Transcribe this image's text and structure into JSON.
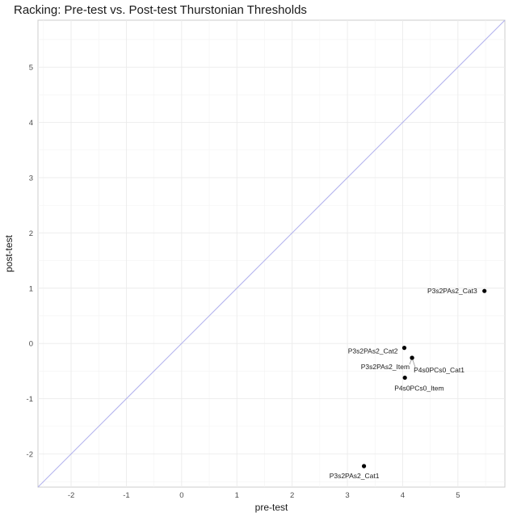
{
  "chart_data": {
    "type": "scatter",
    "title": "Racking: Pre-test vs. Post-test Thurstonian Thresholds",
    "xlabel": "pre-test",
    "ylabel": "post-test",
    "xlim": [
      -2.6,
      5.85
    ],
    "ylim": [
      -2.6,
      5.85
    ],
    "xticks": [
      -2,
      -1,
      0,
      1,
      2,
      3,
      4,
      5
    ],
    "yticks": [
      -2,
      -1,
      0,
      1,
      2,
      3,
      4,
      5
    ],
    "grid": true,
    "reference_line": {
      "slope": 1,
      "intercept": 0,
      "color": "#b3b3ee"
    },
    "points": [
      {
        "label": "P3s2PAs2_Cat3",
        "x": 5.48,
        "y": 0.95
      },
      {
        "label": "P3s2PAs2_Cat2",
        "x": 4.03,
        "y": -0.08
      },
      {
        "label": "P3s2PAs2_Item",
        "x": 4.17,
        "y": -0.26
      },
      {
        "label": "P4s0PCs0_Cat1",
        "x": 4.17,
        "y": -0.26
      },
      {
        "label": "P4s0PCs0_Item",
        "x": 4.04,
        "y": -0.62
      },
      {
        "label": "P3s2PAs2_Cat1",
        "x": 3.3,
        "y": -2.22
      }
    ]
  }
}
